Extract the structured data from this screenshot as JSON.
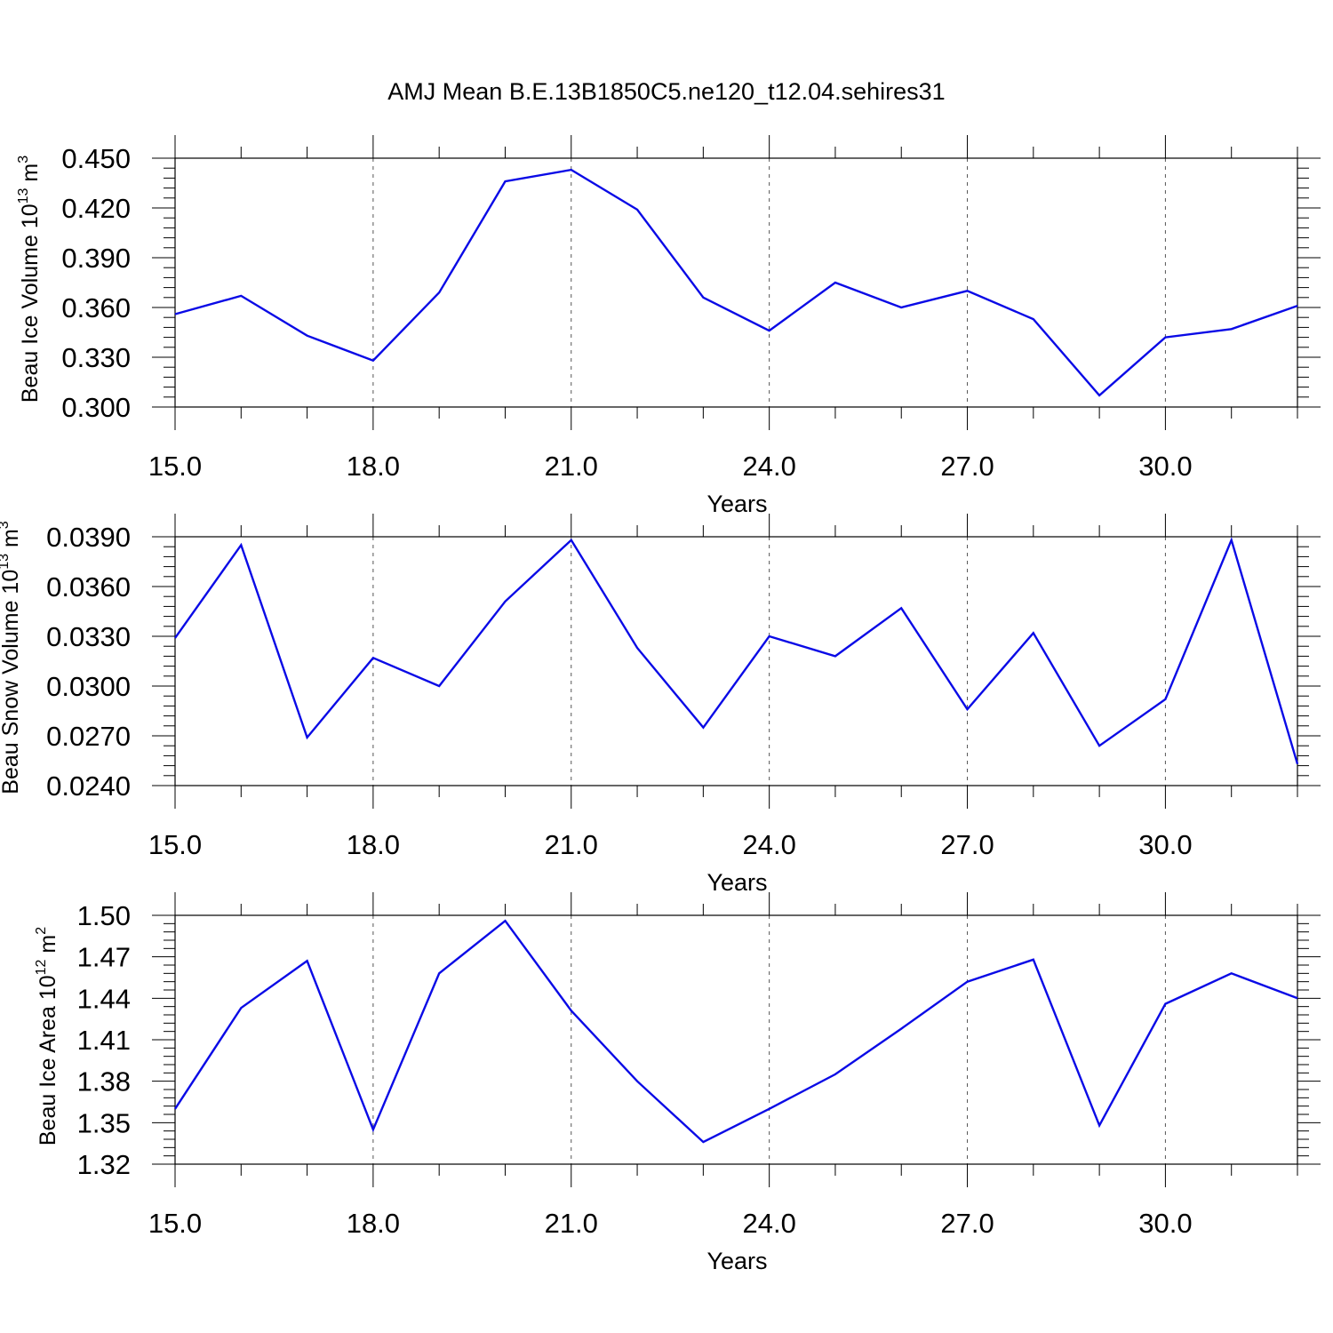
{
  "figure": {
    "title": "AMJ Mean B.E.13B1850C5.ne120_t12.04.sehires31"
  },
  "chart_data": [
    {
      "type": "line",
      "ylabel": "Beau Ice Volume 10",
      "ylabel_sup": "13",
      "ylabel_unit": " m",
      "ylabel_unit_sup": "3",
      "xlabel": "Years",
      "xlim": [
        15,
        32
      ],
      "ylim": [
        0.3,
        0.45
      ],
      "xticks": [
        "15.0",
        "18.0",
        "21.0",
        "24.0",
        "27.0",
        "30.0"
      ],
      "yticks": [
        "0.300",
        "0.330",
        "0.360",
        "0.390",
        "0.420",
        "0.450"
      ],
      "grid": "vertical dashed at major x ticks",
      "line_color": "#0a0ae6",
      "x": [
        15,
        16,
        17,
        18,
        19,
        20,
        21,
        22,
        23,
        24,
        25,
        26,
        27,
        28,
        29,
        30,
        31,
        32
      ],
      "values": [
        0.356,
        0.367,
        0.343,
        0.328,
        0.369,
        0.436,
        0.443,
        0.419,
        0.366,
        0.346,
        0.375,
        0.36,
        0.37,
        0.353,
        0.307,
        0.342,
        0.347,
        0.361
      ]
    },
    {
      "type": "line",
      "ylabel": "Beau Snow Volume 10",
      "ylabel_sup": "13",
      "ylabel_unit": " m",
      "ylabel_unit_sup": "3",
      "xlabel": "Years",
      "xlim": [
        15,
        32
      ],
      "ylim": [
        0.024,
        0.039
      ],
      "xticks": [
        "15.0",
        "18.0",
        "21.0",
        "24.0",
        "27.0",
        "30.0"
      ],
      "yticks": [
        "0.0240",
        "0.0270",
        "0.0300",
        "0.0330",
        "0.0360",
        "0.0390"
      ],
      "grid": "vertical dashed at major x ticks",
      "line_color": "#0a0ae6",
      "x": [
        15,
        16,
        17,
        18,
        19,
        20,
        21,
        22,
        23,
        24,
        25,
        26,
        27,
        28,
        29,
        30,
        31,
        32
      ],
      "values": [
        0.0329,
        0.0385,
        0.0269,
        0.0317,
        0.03,
        0.0351,
        0.0388,
        0.0323,
        0.0275,
        0.033,
        0.0318,
        0.0347,
        0.0286,
        0.0332,
        0.0264,
        0.0292,
        0.0388,
        0.0253
      ]
    },
    {
      "type": "line",
      "ylabel": "Beau Ice Area 10",
      "ylabel_sup": "12",
      "ylabel_unit": " m",
      "ylabel_unit_sup": "2",
      "xlabel": "Years",
      "xlim": [
        15,
        32
      ],
      "ylim": [
        1.32,
        1.5
      ],
      "xticks": [
        "15.0",
        "18.0",
        "21.0",
        "24.0",
        "27.0",
        "30.0"
      ],
      "yticks": [
        "1.32",
        "1.35",
        "1.38",
        "1.41",
        "1.44",
        "1.47",
        "1.50"
      ],
      "grid": "vertical dashed at major x ticks",
      "line_color": "#0a0ae6",
      "x": [
        15,
        16,
        17,
        18,
        19,
        20,
        21,
        22,
        23,
        24,
        25,
        26,
        27,
        28,
        29,
        30,
        31,
        32
      ],
      "values": [
        1.36,
        1.433,
        1.467,
        1.345,
        1.458,
        1.496,
        1.431,
        1.38,
        1.336,
        1.36,
        1.385,
        1.418,
        1.452,
        1.468,
        1.348,
        1.436,
        1.458,
        1.44
      ]
    }
  ]
}
